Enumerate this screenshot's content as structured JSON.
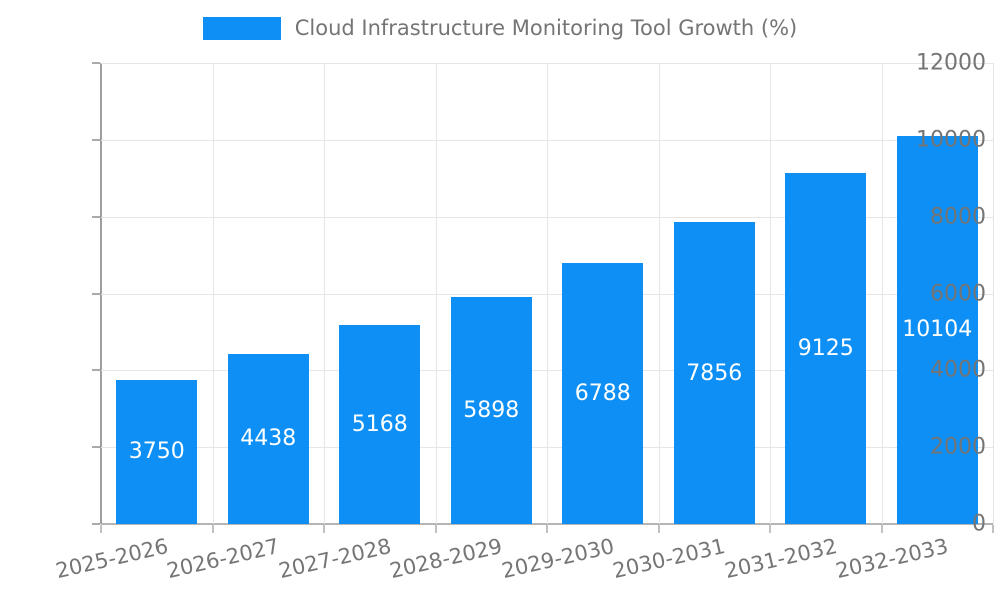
{
  "chart_data": {
    "type": "bar",
    "title": "Cloud Infrastructure Monitoring Tool Growth (%)",
    "categories": [
      "2025-2026",
      "2026-2027",
      "2027-2028",
      "2028-2029",
      "2029-2030",
      "2030-2031",
      "2031-2032",
      "2032-2033"
    ],
    "values": [
      3750,
      4438,
      5168,
      5898,
      6788,
      7856,
      9125,
      10104
    ],
    "xlabel": "",
    "ylabel": "",
    "ylim": [
      0,
      12000
    ],
    "ytick_step": 2000,
    "ytick_labels": [
      "0",
      "2000",
      "4000",
      "6000",
      "8000",
      "10000",
      "12000"
    ],
    "grid": "both",
    "legend_position": "top-center",
    "xtick_rotation_deg": -13,
    "colors": {
      "bar": "#0d8ff5",
      "value_label": "#ffffff",
      "tick_text": "#757575",
      "gridline": "#e6e6e6",
      "axis": "#9e9e9e"
    }
  }
}
